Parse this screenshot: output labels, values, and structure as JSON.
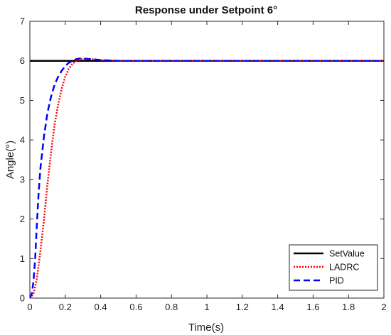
{
  "chart_data": {
    "type": "line",
    "title": "Response under Setpoint 6°",
    "xlabel": "Time(s)",
    "ylabel": "Angle(°)",
    "xlim": [
      0,
      2
    ],
    "ylim": [
      0,
      7
    ],
    "xticks": [
      0,
      0.2,
      0.4,
      0.6,
      0.8,
      1,
      1.2,
      1.4,
      1.6,
      1.8,
      2
    ],
    "xtick_labels": [
      "0",
      "0.2",
      "0.4",
      "0.6",
      "0.8",
      "1",
      "1.2",
      "1.4",
      "1.6",
      "1.8",
      "2"
    ],
    "yticks": [
      0,
      1,
      2,
      3,
      4,
      5,
      6,
      7
    ],
    "ytick_labels": [
      "0",
      "1",
      "2",
      "3",
      "4",
      "5",
      "6",
      "7"
    ],
    "grid": false,
    "legend_position": "bottom-right",
    "series": [
      {
        "name": "SetValue",
        "color": "#000000",
        "style": "solid",
        "x": [
          0,
          2
        ],
        "y": [
          6,
          6
        ]
      },
      {
        "name": "LADRC",
        "color": "#ff0000",
        "style": "dotted",
        "x": [
          0,
          0.02,
          0.04,
          0.06,
          0.08,
          0.1,
          0.12,
          0.14,
          0.16,
          0.18,
          0.2,
          0.22,
          0.24,
          0.26,
          0.28,
          0.3,
          0.33,
          0.36,
          0.4,
          0.45,
          0.5,
          0.6,
          0.8,
          1.0,
          1.5,
          2.0
        ],
        "y": [
          0,
          0.1,
          0.5,
          1.2,
          2.0,
          2.9,
          3.7,
          4.4,
          4.9,
          5.3,
          5.6,
          5.8,
          5.92,
          5.99,
          6.03,
          6.05,
          6.05,
          6.04,
          6.02,
          6.01,
          6.0,
          6.0,
          6.0,
          6.0,
          6.0,
          6.0
        ]
      },
      {
        "name": "PID",
        "color": "#0000ff",
        "style": "dashed",
        "x": [
          0,
          0.01,
          0.02,
          0.03,
          0.04,
          0.05,
          0.06,
          0.08,
          0.1,
          0.12,
          0.14,
          0.16,
          0.18,
          0.2,
          0.22,
          0.24,
          0.26,
          0.28,
          0.3,
          0.32,
          0.35,
          0.4,
          0.45,
          0.5,
          0.6,
          0.8,
          1.0,
          1.5,
          2.0
        ],
        "y": [
          0,
          0.1,
          0.4,
          1.0,
          1.9,
          2.7,
          3.3,
          4.1,
          4.7,
          5.1,
          5.4,
          5.6,
          5.75,
          5.87,
          5.95,
          6.0,
          6.04,
          6.06,
          6.06,
          6.05,
          6.04,
          6.02,
          6.01,
          6.0,
          6.0,
          6.0,
          6.0,
          6.0,
          6.0
        ]
      }
    ]
  }
}
